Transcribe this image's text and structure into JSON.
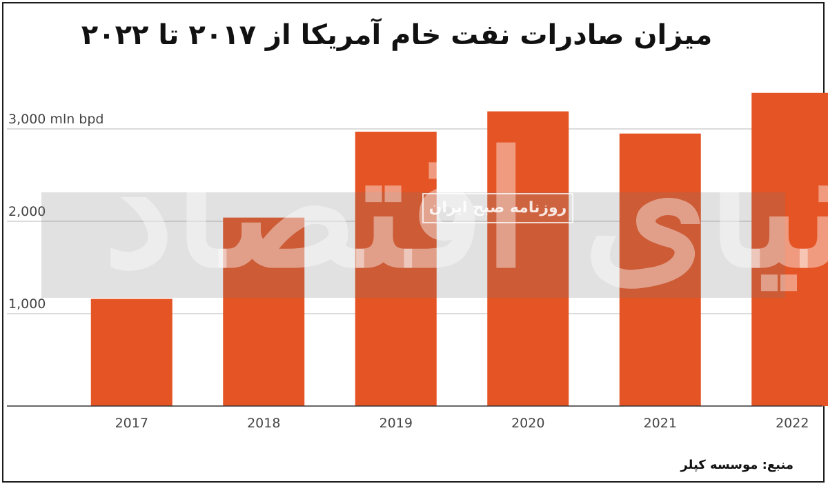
{
  "title": "میزان صادرات نفت خام آمریکا از ۲۰۱۷ تا ۲۰۲۲",
  "source": "منبع: موسسه کپلر",
  "watermark": {
    "badge": "روزنامه صبح ایران",
    "logo": "دنیای اقتصاد"
  },
  "colors": {
    "bar": "#e55424",
    "grid": "#c8c8c8",
    "axis": "#333333",
    "text": "#444444"
  },
  "chart_data": {
    "type": "bar",
    "categories": [
      "2017",
      "2018",
      "2019",
      "2020",
      "2021",
      "2022"
    ],
    "values": [
      1160,
      2040,
      2970,
      3190,
      2950,
      3390
    ],
    "ylim": [
      0,
      3600
    ],
    "yticks": [
      {
        "value": 1000,
        "label": "1,000"
      },
      {
        "value": 2000,
        "label": "2,000"
      },
      {
        "value": 3000,
        "label": "3,000 mln bpd"
      }
    ],
    "grid": true
  }
}
